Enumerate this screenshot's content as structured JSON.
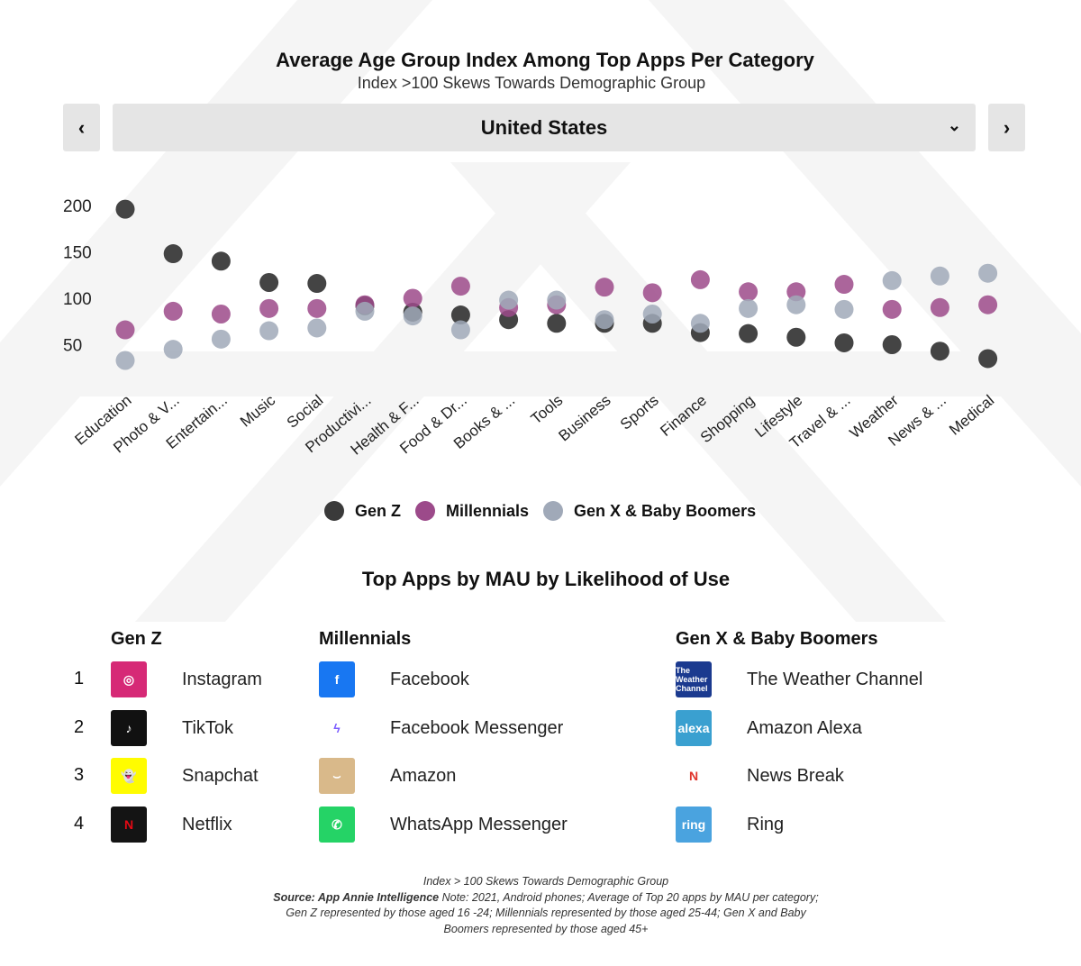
{
  "header": {
    "title": "Average Age Group Index Among Top Apps Per Category",
    "subtitle": "Index  >100 Skews Towards Demographic Group",
    "prev": "‹",
    "next": "›",
    "country": "United States"
  },
  "chart_data": {
    "type": "scatter",
    "title": "Average Age Group Index Among Top Apps Per Category",
    "categories": [
      "Education",
      "Photo & V...",
      "Entertain...",
      "Music",
      "Social",
      "Productivi...",
      "Health & F...",
      "Food & Dr...",
      "Books & ...",
      "Tools",
      "Business",
      "Sports",
      "Finance",
      "Shopping",
      "Lifestyle",
      "Travel & ...",
      "Weather",
      "News & ...",
      "Medical"
    ],
    "yticks": [
      "200",
      "150",
      "100",
      "50"
    ],
    "ylim": [
      20,
      205
    ],
    "series": [
      {
        "name": "Gen Z",
        "color": "#3a3a3a",
        "values": [
          196,
          148,
          140,
          117,
          116,
          92,
          85,
          82,
          77,
          73,
          73,
          73,
          63,
          62,
          58,
          52,
          50,
          43,
          35
        ]
      },
      {
        "name": "Millennials",
        "color": "#9c4a8a",
        "values": [
          66,
          86,
          83,
          89,
          89,
          93,
          100,
          113,
          90,
          93,
          112,
          106,
          120,
          107,
          107,
          115,
          88,
          90,
          93
        ]
      },
      {
        "name": "Gen X & Baby Boomers",
        "color": "#a0a9b8",
        "values": [
          33,
          45,
          56,
          65,
          68,
          86,
          81,
          66,
          98,
          98,
          77,
          83,
          73,
          89,
          93,
          88,
          119,
          124,
          127
        ]
      }
    ],
    "legend": "bottom"
  },
  "top_apps": {
    "title": "Top Apps by MAU by Likelihood of Use",
    "ranks": [
      "1",
      "2",
      "3",
      "4"
    ],
    "columns": [
      {
        "heading": "Gen Z",
        "apps": [
          {
            "name": "Instagram",
            "icon": "instagram-icon",
            "glyph": "◎",
            "color": "#d62976"
          },
          {
            "name": "TikTok",
            "icon": "tiktok-icon",
            "glyph": "♪",
            "color": "#111111"
          },
          {
            "name": "Snapchat",
            "icon": "snapchat-icon",
            "glyph": "👻",
            "color": "#fffc00"
          },
          {
            "name": "Netflix",
            "icon": "netflix-icon",
            "glyph": "N",
            "color": "#141414"
          }
        ]
      },
      {
        "heading": "Millennials",
        "apps": [
          {
            "name": "Facebook",
            "icon": "facebook-icon",
            "glyph": "f",
            "color": "#1877f2"
          },
          {
            "name": "Facebook Messenger",
            "icon": "messenger-icon",
            "glyph": "ϟ",
            "color": "#ffffff"
          },
          {
            "name": "Amazon",
            "icon": "amazon-icon",
            "glyph": "⌣",
            "color": "#d9b98a"
          },
          {
            "name": "WhatsApp Messenger",
            "icon": "whatsapp-icon",
            "glyph": "✆",
            "color": "#25d366"
          }
        ]
      },
      {
        "heading": "Gen X & Baby Boomers",
        "apps": [
          {
            "name": "The Weather Channel",
            "icon": "weather-channel-icon",
            "glyph": "The Weather Channel",
            "color": "#1b3a8f"
          },
          {
            "name": "Amazon Alexa",
            "icon": "alexa-icon",
            "glyph": "alexa",
            "color": "#3aa0d0"
          },
          {
            "name": "News Break",
            "icon": "news-break-icon",
            "glyph": "N",
            "color": "#ffffff"
          },
          {
            "name": "Ring",
            "icon": "ring-icon",
            "glyph": "ring",
            "color": "#4aa3df"
          }
        ]
      }
    ]
  },
  "footer": {
    "line1": "Index > 100 Skews Towards Demographic Group",
    "source": "Source: App Annie Intelligence",
    "note": " Note: 2021, Android phones; Average of Top 20 apps by MAU per category; Gen Z represented by those aged 16 -24; Millennials represented by those aged 25-44; Gen X and Baby Boomers represented by those aged 45+"
  }
}
